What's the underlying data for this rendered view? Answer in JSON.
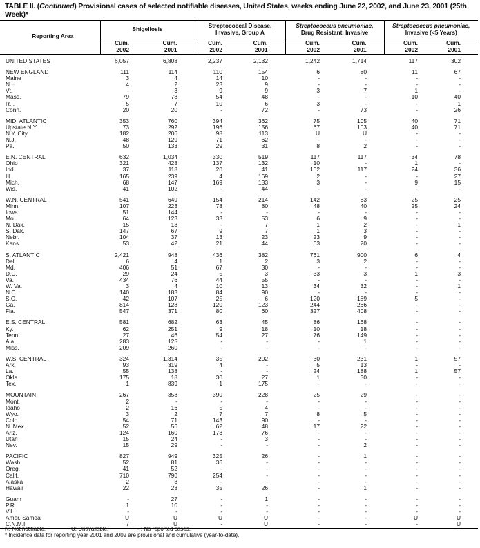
{
  "title": {
    "prefix": "TABLE II. (",
    "continued": "Continued",
    "text": ") Provisional cases of selected notifiable diseases, United States, weeks ending June 22, 2002, and June 23, 2001 (25th Week)*"
  },
  "header": {
    "reporting_area": "Reporting Area",
    "groups": [
      {
        "line1": "",
        "line2": "Shigellosis",
        "italic": ""
      },
      {
        "line1": "Streptococcal Disease,",
        "line2": "Invasive, Group A",
        "italic": ""
      },
      {
        "line1": "Streptococcus pneumoniae,",
        "line2": "Drug Resistant, Invasive",
        "italic": "yes"
      },
      {
        "line1": "Streptococcus pneumoniae,",
        "line2": "Invasive (<5 Years)",
        "italic": "yes"
      }
    ],
    "sub": [
      {
        "l1": "Cum.",
        "l2": "2002"
      },
      {
        "l1": "Cum.",
        "l2": "2001"
      },
      {
        "l1": "Cum.",
        "l2": "2002"
      },
      {
        "l1": "Cum.",
        "l2": "2001"
      },
      {
        "l1": "Cum.",
        "l2": "2002"
      },
      {
        "l1": "Cum.",
        "l2": "2001"
      },
      {
        "l1": "Cum.",
        "l2": "2002"
      },
      {
        "l1": "Cum.",
        "l2": "2001"
      }
    ]
  },
  "rows": [
    [
      "UNITED STATES",
      "6,057",
      "6,808",
      "2,237",
      "2,132",
      "1,242",
      "1,714",
      "117",
      "302"
    ],
    [
      "NEW ENGLAND",
      "111",
      "114",
      "110",
      "154",
      "6",
      "80",
      "11",
      "67"
    ],
    [
      "Maine",
      "3",
      "4",
      "14",
      "10",
      "-",
      "-",
      "-",
      "-"
    ],
    [
      "N.H.",
      "4",
      "2",
      "23",
      "9",
      "-",
      "-",
      "-",
      "-"
    ],
    [
      "Vt.",
      "-",
      "3",
      "9",
      "9",
      "3",
      "7",
      "1",
      "-"
    ],
    [
      "Mass.",
      "79",
      "78",
      "54",
      "48",
      "-",
      "-",
      "10",
      "40"
    ],
    [
      "R.I.",
      "5",
      "7",
      "10",
      "6",
      "3",
      "-",
      "-",
      "1"
    ],
    [
      "Conn.",
      "20",
      "20",
      "-",
      "72",
      "-",
      "73",
      "-",
      "26"
    ],
    [
      "MID. ATLANTIC",
      "353",
      "760",
      "394",
      "362",
      "75",
      "105",
      "40",
      "71"
    ],
    [
      "Upstate N.Y.",
      "73",
      "292",
      "196",
      "156",
      "67",
      "103",
      "40",
      "71"
    ],
    [
      "N.Y. City",
      "182",
      "206",
      "98",
      "113",
      "U",
      "U",
      "-",
      "-"
    ],
    [
      "N.J.",
      "48",
      "129",
      "71",
      "62",
      "-",
      "-",
      "-",
      "-"
    ],
    [
      "Pa.",
      "50",
      "133",
      "29",
      "31",
      "8",
      "2",
      "-",
      "-"
    ],
    [
      "E.N. CENTRAL",
      "632",
      "1,034",
      "330",
      "519",
      "117",
      "117",
      "34",
      "78"
    ],
    [
      "Ohio",
      "321",
      "428",
      "137",
      "132",
      "10",
      "-",
      "1",
      "-"
    ],
    [
      "Ind.",
      "37",
      "118",
      "20",
      "41",
      "102",
      "117",
      "24",
      "36"
    ],
    [
      "Ill.",
      "165",
      "239",
      "4",
      "169",
      "2",
      "-",
      "-",
      "27"
    ],
    [
      "Mich.",
      "68",
      "147",
      "169",
      "133",
      "3",
      "-",
      "9",
      "15"
    ],
    [
      "Wis.",
      "41",
      "102",
      "-",
      "44",
      "-",
      "-",
      "-",
      "-"
    ],
    [
      "W.N. CENTRAL",
      "541",
      "649",
      "154",
      "214",
      "142",
      "83",
      "25",
      "25"
    ],
    [
      "Minn.",
      "107",
      "223",
      "78",
      "80",
      "48",
      "40",
      "25",
      "24"
    ],
    [
      "Iowa",
      "51",
      "144",
      "-",
      "-",
      "-",
      "-",
      "-",
      "-"
    ],
    [
      "Mo.",
      "64",
      "123",
      "33",
      "53",
      "6",
      "9",
      "-",
      "-"
    ],
    [
      "N. Dak.",
      "15",
      "13",
      "-",
      "7",
      "1",
      "2",
      "-",
      "1"
    ],
    [
      "S. Dak.",
      "147",
      "67",
      "9",
      "7",
      "1",
      "3",
      "-",
      "-"
    ],
    [
      "Nebr.",
      "104",
      "37",
      "13",
      "23",
      "23",
      "9",
      "-",
      "-"
    ],
    [
      "Kans.",
      "53",
      "42",
      "21",
      "44",
      "63",
      "20",
      "-",
      "-"
    ],
    [
      "S. ATLANTIC",
      "2,421",
      "948",
      "436",
      "382",
      "761",
      "900",
      "6",
      "4"
    ],
    [
      "Del.",
      "6",
      "4",
      "1",
      "2",
      "3",
      "2",
      "-",
      "-"
    ],
    [
      "Md.",
      "406",
      "51",
      "67",
      "30",
      "-",
      "-",
      "-",
      "-"
    ],
    [
      "D.C.",
      "29",
      "24",
      "5",
      "3",
      "33",
      "3",
      "1",
      "3"
    ],
    [
      "Va.",
      "434",
      "76",
      "44",
      "55",
      "-",
      "-",
      "-",
      "-"
    ],
    [
      "W. Va.",
      "3",
      "4",
      "10",
      "13",
      "34",
      "32",
      "-",
      "1"
    ],
    [
      "N.C.",
      "140",
      "183",
      "84",
      "90",
      "-",
      "-",
      "-",
      "-"
    ],
    [
      "S.C.",
      "42",
      "107",
      "25",
      "6",
      "120",
      "189",
      "5",
      "-"
    ],
    [
      "Ga.",
      "814",
      "128",
      "120",
      "123",
      "244",
      "266",
      "-",
      "-"
    ],
    [
      "Fla.",
      "547",
      "371",
      "80",
      "60",
      "327",
      "408",
      "-",
      "-"
    ],
    [
      "E.S. CENTRAL",
      "581",
      "682",
      "63",
      "45",
      "86",
      "168",
      "-",
      "-"
    ],
    [
      "Ky.",
      "62",
      "251",
      "9",
      "18",
      "10",
      "18",
      "-",
      "-"
    ],
    [
      "Tenn.",
      "27",
      "46",
      "54",
      "27",
      "76",
      "149",
      "-",
      "-"
    ],
    [
      "Ala.",
      "283",
      "125",
      "-",
      "-",
      "-",
      "1",
      "-",
      "-"
    ],
    [
      "Miss.",
      "209",
      "260",
      "-",
      "-",
      "-",
      "-",
      "-",
      "-"
    ],
    [
      "W.S. CENTRAL",
      "324",
      "1,314",
      "35",
      "202",
      "30",
      "231",
      "1",
      "57"
    ],
    [
      "Ark.",
      "93",
      "319",
      "4",
      "-",
      "5",
      "13",
      "-",
      "-"
    ],
    [
      "La.",
      "55",
      "138",
      "-",
      "-",
      "24",
      "188",
      "1",
      "57"
    ],
    [
      "Okla.",
      "175",
      "18",
      "30",
      "27",
      "1",
      "30",
      "-",
      "-"
    ],
    [
      "Tex.",
      "1",
      "839",
      "1",
      "175",
      "-",
      "-",
      "-",
      "-"
    ],
    [
      "MOUNTAIN",
      "267",
      "358",
      "390",
      "228",
      "25",
      "29",
      "-",
      "-"
    ],
    [
      "Mont.",
      "2",
      "-",
      "-",
      "-",
      "-",
      "-",
      "-",
      "-"
    ],
    [
      "Idaho",
      "2",
      "16",
      "5",
      "4",
      "-",
      "-",
      "-",
      "-"
    ],
    [
      "Wyo.",
      "3",
      "2",
      "7",
      "7",
      "8",
      "5",
      "-",
      "-"
    ],
    [
      "Colo.",
      "54",
      "71",
      "143",
      "90",
      "-",
      "-",
      "-",
      "-"
    ],
    [
      "N. Mex.",
      "52",
      "56",
      "62",
      "48",
      "17",
      "22",
      "-",
      "-"
    ],
    [
      "Ariz.",
      "124",
      "160",
      "173",
      "76",
      "-",
      "-",
      "-",
      "-"
    ],
    [
      "Utah",
      "15",
      "24",
      "-",
      "3",
      "-",
      "-",
      "-",
      "-"
    ],
    [
      "Nev.",
      "15",
      "29",
      "-",
      "-",
      "-",
      "2",
      "-",
      "-"
    ],
    [
      "PACIFIC",
      "827",
      "949",
      "325",
      "26",
      "-",
      "1",
      "-",
      "-"
    ],
    [
      "Wash.",
      "52",
      "81",
      "36",
      "-",
      "-",
      "-",
      "-",
      "-"
    ],
    [
      "Oreg.",
      "41",
      "52",
      "-",
      "-",
      "-",
      "-",
      "-",
      "-"
    ],
    [
      "Calif.",
      "710",
      "790",
      "254",
      "-",
      "-",
      "-",
      "-",
      "-"
    ],
    [
      "Alaska",
      "2",
      "3",
      "-",
      "-",
      "-",
      "-",
      "-",
      "-"
    ],
    [
      "Hawaii",
      "22",
      "23",
      "35",
      "26",
      "-",
      "1",
      "-",
      "-"
    ],
    [
      "Guam",
      "-",
      "27",
      "-",
      "1",
      "-",
      "-",
      "-",
      "-"
    ],
    [
      "P.R.",
      "1",
      "10",
      "-",
      "-",
      "-",
      "-",
      "-",
      "-"
    ],
    [
      "V.I.",
      "-",
      "-",
      "-",
      "-",
      "-",
      "-",
      "-",
      "-"
    ],
    [
      "Amer. Samoa",
      "U",
      "U",
      "U",
      "U",
      "-",
      "-",
      "U",
      "U"
    ],
    [
      "C.N.M.I.",
      "7",
      "U",
      "-",
      "U",
      "-",
      "-",
      "-",
      "U"
    ]
  ],
  "group_starts": [
    1,
    8,
    13,
    19,
    27,
    37,
    42,
    47,
    56,
    62
  ],
  "footnotes": {
    "n": "N: Not notifiable.",
    "u": "U: Unavailable.",
    "dash": "- : No reported cases.",
    "star": "* Incidence data for reporting year 2001 and 2002 are provisional and cumulative (year-to-date)."
  }
}
